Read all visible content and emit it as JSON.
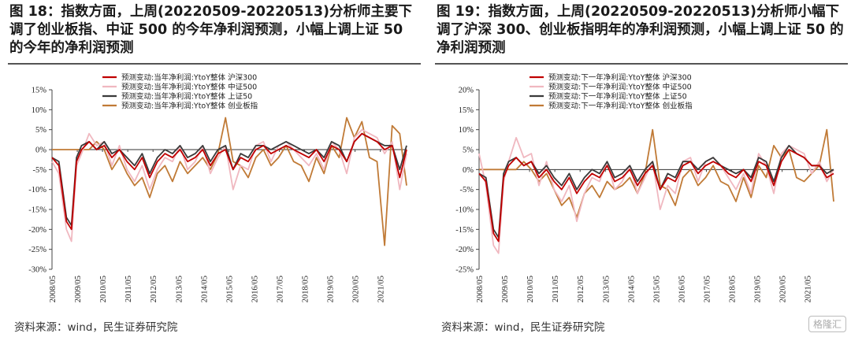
{
  "panels": [
    {
      "title": "图 18：指数方面，上周(20220509-20220513)分析师主要下调了创业板指、中证 500 的今年净利润预测，小幅上调上证 50 的今年的净利润预测",
      "source": "资料来源：wind，民生证券研究院"
    },
    {
      "title": "图 19：指数方面，上周(20220509-20220513)分析师小幅下调了沪深 300、创业板指明年的净利润预测，小幅上调上证 50 的净利润预测",
      "source": "资料来源：wind，民生证券研究院"
    }
  ],
  "watermark": "格隆汇",
  "colors": {
    "hs300": "#c00000",
    "zz500": "#f0b8c0",
    "sz50": "#3a3a3a",
    "cyb": "#c07a36"
  },
  "chart_data": [
    {
      "type": "line",
      "title": "",
      "ylim": [
        -30,
        15
      ],
      "yticks": [
        "15%",
        "10%",
        "5%",
        "0%",
        "-5%",
        "-10%",
        "-15%",
        "-20%",
        "-25%",
        "-30%"
      ],
      "ytick_values": [
        15,
        10,
        5,
        0,
        -5,
        -10,
        -15,
        -20,
        -25,
        -30
      ],
      "xlim": [
        2008.33,
        2022.37
      ],
      "xticks": [
        "2008/05",
        "2009/05",
        "2010/05",
        "2011/05",
        "2012/05",
        "2013/05",
        "2014/05",
        "2015/05",
        "2016/05",
        "2017/05",
        "2018/05",
        "2019/05",
        "2020/05",
        "2021/05"
      ],
      "xtick_values": [
        2008.33,
        2009.33,
        2010.33,
        2011.33,
        2012.33,
        2013.33,
        2014.33,
        2015.33,
        2016.33,
        2017.33,
        2018.33,
        2019.33,
        2020.33,
        2021.33
      ],
      "legend_position": "top-center",
      "series": [
        {
          "name": "预测变动:当年净利润:YtoY整体 沪深300",
          "color_key": "hs300",
          "x": [
            2008.33,
            2008.6,
            2008.9,
            2009.1,
            2009.3,
            2009.5,
            2009.8,
            2010.1,
            2010.4,
            2010.7,
            2011.0,
            2011.3,
            2011.6,
            2011.9,
            2012.2,
            2012.5,
            2012.8,
            2013.1,
            2013.4,
            2013.7,
            2014.0,
            2014.3,
            2014.6,
            2014.9,
            2015.2,
            2015.5,
            2015.8,
            2016.1,
            2016.4,
            2016.7,
            2017.0,
            2017.3,
            2017.6,
            2017.9,
            2018.2,
            2018.5,
            2018.8,
            2019.1,
            2019.4,
            2019.7,
            2020.0,
            2020.3,
            2020.6,
            2020.9,
            2021.2,
            2021.5,
            2021.8,
            2022.1,
            2022.37
          ],
          "y": [
            -2,
            -4,
            -18,
            -20,
            -3,
            0,
            2,
            0,
            1,
            -2,
            0,
            -3,
            -5,
            -2,
            -7,
            -3,
            -1,
            -2,
            0,
            -3,
            -2,
            0,
            -4,
            -1,
            0,
            -5,
            -2,
            -3,
            0,
            1,
            -1,
            0,
            1,
            0,
            -1,
            -2,
            0,
            -3,
            1,
            0,
            -3,
            2,
            4,
            3,
            2,
            0,
            1,
            -7,
            0
          ]
        },
        {
          "name": "预测变动:当年净利润:YtoY整体 中证500",
          "color_key": "zz500",
          "x": [
            2008.33,
            2008.6,
            2008.9,
            2009.1,
            2009.3,
            2009.5,
            2009.8,
            2010.1,
            2010.4,
            2010.7,
            2011.0,
            2011.3,
            2011.6,
            2011.9,
            2012.2,
            2012.5,
            2012.8,
            2013.1,
            2013.4,
            2013.7,
            2014.0,
            2014.3,
            2014.6,
            2014.9,
            2015.2,
            2015.5,
            2015.8,
            2016.1,
            2016.4,
            2016.7,
            2017.0,
            2017.3,
            2017.6,
            2017.9,
            2018.2,
            2018.5,
            2018.8,
            2019.1,
            2019.4,
            2019.7,
            2020.0,
            2020.3,
            2020.6,
            2020.9,
            2021.2,
            2021.5,
            2021.8,
            2022.1,
            2022.37
          ],
          "y": [
            -3,
            -6,
            -20,
            -23,
            -4,
            -1,
            4,
            1,
            2,
            -4,
            1,
            -5,
            -8,
            -4,
            -10,
            -5,
            -2,
            -3,
            1,
            -5,
            -3,
            1,
            -6,
            -2,
            1,
            -10,
            -4,
            -5,
            1,
            2,
            -3,
            1,
            2,
            0,
            -2,
            -4,
            -1,
            -5,
            2,
            0,
            -6,
            3,
            5,
            4,
            3,
            -1,
            2,
            -10,
            -1
          ]
        },
        {
          "name": "预测变动:当年净利润:YtoY整体 上证50",
          "color_key": "sz50",
          "x": [
            2008.33,
            2008.6,
            2008.9,
            2009.1,
            2009.3,
            2009.5,
            2009.8,
            2010.1,
            2010.4,
            2010.7,
            2011.0,
            2011.3,
            2011.6,
            2011.9,
            2012.2,
            2012.5,
            2012.8,
            2013.1,
            2013.4,
            2013.7,
            2014.0,
            2014.3,
            2014.6,
            2014.9,
            2015.2,
            2015.5,
            2015.8,
            2016.1,
            2016.4,
            2016.7,
            2017.0,
            2017.3,
            2017.6,
            2017.9,
            2018.2,
            2018.5,
            2018.8,
            2019.1,
            2019.4,
            2019.7,
            2020.0,
            2020.3,
            2020.6,
            2020.9,
            2021.2,
            2021.5,
            2021.8,
            2022.1,
            2022.37
          ],
          "y": [
            -2,
            -3,
            -17,
            -19,
            -2,
            1,
            2,
            0,
            2,
            -1,
            0,
            -2,
            -4,
            -1,
            -6,
            -2,
            0,
            -1,
            1,
            -2,
            -1,
            1,
            -3,
            0,
            1,
            -5,
            -1,
            -2,
            1,
            1,
            0,
            1,
            2,
            1,
            0,
            -1,
            0,
            -2,
            2,
            1,
            -3,
            2,
            4,
            3,
            2,
            1,
            1,
            -5,
            1
          ]
        },
        {
          "name": "预测变动:当年净利润:YtoY整体 创业板指",
          "color_key": "cyb",
          "x": [
            2008.33,
            2008.6,
            2008.9,
            2009.1,
            2009.3,
            2009.5,
            2009.8,
            2010.1,
            2010.4,
            2010.7,
            2011.0,
            2011.3,
            2011.6,
            2011.9,
            2012.2,
            2012.5,
            2012.8,
            2013.1,
            2013.4,
            2013.7,
            2014.0,
            2014.3,
            2014.6,
            2014.9,
            2015.2,
            2015.5,
            2015.8,
            2016.1,
            2016.4,
            2016.7,
            2017.0,
            2017.3,
            2017.6,
            2017.9,
            2018.2,
            2018.5,
            2018.8,
            2019.1,
            2019.4,
            2019.7,
            2020.0,
            2020.3,
            2020.6,
            2020.9,
            2021.2,
            2021.5,
            2021.8,
            2022.1,
            2022.37
          ],
          "y": [
            0,
            0,
            0,
            0,
            0,
            0,
            0,
            2,
            0,
            -5,
            -2,
            -6,
            -9,
            -7,
            -12,
            -6,
            -4,
            -8,
            -3,
            -6,
            -4,
            -2,
            -5,
            -1,
            8,
            -3,
            -4,
            -7,
            -2,
            0,
            -4,
            -2,
            1,
            -3,
            -4,
            -8,
            -2,
            -6,
            1,
            -2,
            8,
            3,
            7,
            -2,
            -3,
            -24,
            6,
            4,
            -9
          ]
        }
      ]
    },
    {
      "type": "line",
      "title": "",
      "ylim": [
        -25,
        20
      ],
      "yticks": [
        "20%",
        "15%",
        "10%",
        "5%",
        "0%",
        "-5%",
        "-10%",
        "-15%",
        "-20%",
        "-25%"
      ],
      "ytick_values": [
        20,
        15,
        10,
        5,
        0,
        -5,
        -10,
        -15,
        -20,
        -25
      ],
      "xlim": [
        2008.33,
        2022.37
      ],
      "xticks": [
        "2008/05",
        "2009/05",
        "2010/05",
        "2011/05",
        "2012/05",
        "2013/05",
        "2014/05",
        "2015/05",
        "2016/05",
        "2017/05",
        "2018/05",
        "2019/05",
        "2020/05",
        "2021/05"
      ],
      "xtick_values": [
        2008.33,
        2009.33,
        2010.33,
        2011.33,
        2012.33,
        2013.33,
        2014.33,
        2015.33,
        2016.33,
        2017.33,
        2018.33,
        2019.33,
        2020.33,
        2021.33
      ],
      "legend_position": "top-center",
      "series": [
        {
          "name": "预测变动:下一年净利润:YtoY整体 沪深300",
          "color_key": "hs300",
          "x": [
            2008.33,
            2008.6,
            2008.9,
            2009.1,
            2009.3,
            2009.5,
            2009.8,
            2010.1,
            2010.4,
            2010.7,
            2011.0,
            2011.3,
            2011.6,
            2011.9,
            2012.2,
            2012.5,
            2012.8,
            2013.1,
            2013.4,
            2013.7,
            2014.0,
            2014.3,
            2014.6,
            2014.9,
            2015.2,
            2015.5,
            2015.8,
            2016.1,
            2016.4,
            2016.7,
            2017.0,
            2017.3,
            2017.6,
            2017.9,
            2018.2,
            2018.5,
            2018.8,
            2019.1,
            2019.4,
            2019.7,
            2020.0,
            2020.3,
            2020.6,
            2020.9,
            2021.2,
            2021.5,
            2021.8,
            2022.1,
            2022.37
          ],
          "y": [
            -1,
            -3,
            -16,
            -18,
            -2,
            1,
            3,
            1,
            2,
            -2,
            0,
            -3,
            -5,
            -2,
            -6,
            -3,
            -1,
            -2,
            1,
            -3,
            -2,
            0,
            -4,
            -1,
            1,
            -5,
            -2,
            -3,
            1,
            2,
            -1,
            1,
            2,
            1,
            -1,
            -2,
            0,
            -3,
            2,
            1,
            -4,
            2,
            5,
            4,
            3,
            1,
            1,
            -2,
            -1
          ]
        },
        {
          "name": "预测变动:下一年净利润:YtoY整体 中证500",
          "color_key": "zz500",
          "x": [
            2008.33,
            2008.6,
            2008.9,
            2009.1,
            2009.3,
            2009.5,
            2009.8,
            2010.1,
            2010.4,
            2010.7,
            2011.0,
            2011.3,
            2011.6,
            2011.9,
            2012.2,
            2012.5,
            2012.8,
            2013.1,
            2013.4,
            2013.7,
            2014.0,
            2014.3,
            2014.6,
            2014.9,
            2015.2,
            2015.5,
            2015.8,
            2016.1,
            2016.4,
            2016.7,
            2017.0,
            2017.3,
            2017.6,
            2017.9,
            2018.2,
            2018.5,
            2018.8,
            2019.1,
            2019.4,
            2019.7,
            2020.0,
            2020.3,
            2020.6,
            2020.9,
            2021.2,
            2021.5,
            2021.8,
            2022.1,
            2022.37
          ],
          "y": [
            4,
            -4,
            -19,
            -21,
            -3,
            2,
            8,
            3,
            4,
            -4,
            2,
            -5,
            -8,
            -4,
            -13,
            -6,
            -2,
            -3,
            2,
            -5,
            -3,
            1,
            -6,
            -2,
            2,
            -10,
            -4,
            -6,
            2,
            3,
            -3,
            2,
            3,
            1,
            -2,
            -5,
            -1,
            -6,
            4,
            1,
            -6,
            4,
            6,
            5,
            4,
            -1,
            2,
            -3,
            0
          ]
        },
        {
          "name": "预测变动:下一年净利润:YtoY整体 上证50",
          "color_key": "sz50",
          "x": [
            2008.33,
            2008.6,
            2008.9,
            2009.1,
            2009.3,
            2009.5,
            2009.8,
            2010.1,
            2010.4,
            2010.7,
            2011.0,
            2011.3,
            2011.6,
            2011.9,
            2012.2,
            2012.5,
            2012.8,
            2013.1,
            2013.4,
            2013.7,
            2014.0,
            2014.3,
            2014.6,
            2014.9,
            2015.2,
            2015.5,
            2015.8,
            2016.1,
            2016.4,
            2016.7,
            2017.0,
            2017.3,
            2017.6,
            2017.9,
            2018.2,
            2018.5,
            2018.8,
            2019.1,
            2019.4,
            2019.7,
            2020.0,
            2020.3,
            2020.6,
            2020.9,
            2021.2,
            2021.5,
            2021.8,
            2022.1,
            2022.37
          ],
          "y": [
            -1,
            -2,
            -15,
            -17,
            -1,
            2,
            3,
            1,
            2,
            -1,
            1,
            -2,
            -4,
            -1,
            -5,
            -2,
            0,
            -1,
            2,
            -2,
            -1,
            1,
            -3,
            0,
            2,
            -5,
            -1,
            -2,
            2,
            2,
            0,
            2,
            3,
            1,
            0,
            -1,
            0,
            -2,
            3,
            2,
            -3,
            3,
            6,
            4,
            3,
            1,
            1,
            -1,
            0
          ]
        },
        {
          "name": "预测变动:下一年净利润:YtoY整体 创业板指",
          "color_key": "cyb",
          "x": [
            2008.33,
            2008.6,
            2008.9,
            2009.1,
            2009.3,
            2009.5,
            2009.8,
            2010.1,
            2010.4,
            2010.7,
            2011.0,
            2011.3,
            2011.6,
            2011.9,
            2012.2,
            2012.5,
            2012.8,
            2013.1,
            2013.4,
            2013.7,
            2014.0,
            2014.3,
            2014.6,
            2014.9,
            2015.2,
            2015.5,
            2015.8,
            2016.1,
            2016.4,
            2016.7,
            2017.0,
            2017.3,
            2017.6,
            2017.9,
            2018.2,
            2018.5,
            2018.8,
            2019.1,
            2019.4,
            2019.7,
            2020.0,
            2020.3,
            2020.6,
            2020.9,
            2021.2,
            2021.5,
            2021.8,
            2022.1,
            2022.37
          ],
          "y": [
            0,
            0,
            0,
            0,
            0,
            0,
            0,
            2,
            0,
            -3,
            -1,
            -5,
            -9,
            -7,
            -12,
            -6,
            -4,
            -7,
            -3,
            -5,
            -4,
            -2,
            -6,
            -1,
            10,
            -4,
            -5,
            -9,
            -2,
            0,
            -4,
            -2,
            1,
            -3,
            -4,
            -8,
            -2,
            -7,
            1,
            -2,
            6,
            3,
            5,
            -2,
            -3,
            -1,
            1,
            10,
            -8
          ]
        }
      ]
    }
  ]
}
